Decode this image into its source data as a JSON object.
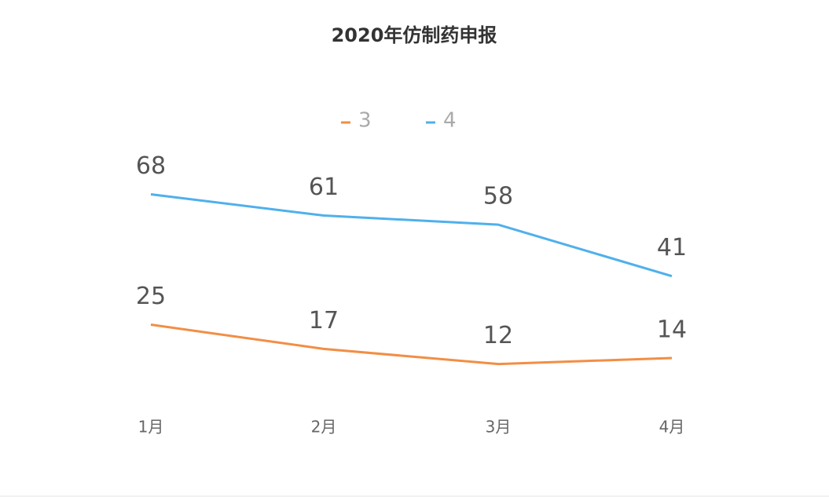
{
  "chart_data": {
    "type": "line",
    "title": "2020年仿制药申报",
    "categories": [
      "1月",
      "2月",
      "3月",
      "4月"
    ],
    "series": [
      {
        "name": "3",
        "color": "#f28e45",
        "values": [
          25,
          17,
          12,
          14
        ]
      },
      {
        "name": "4",
        "color": "#4fb0ec",
        "values": [
          68,
          61,
          58,
          41
        ]
      }
    ],
    "ylim": [
      0,
      100
    ]
  }
}
